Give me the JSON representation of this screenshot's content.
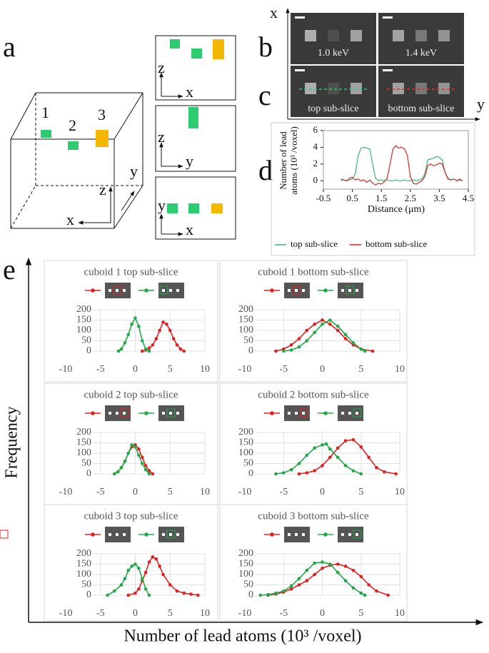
{
  "panel_labels": [
    "a",
    "b",
    "c",
    "d",
    "e"
  ],
  "panel_a": {
    "cuboid_labels": [
      "1",
      "2",
      "3"
    ],
    "cube_axes": [
      "z",
      "x",
      "y"
    ],
    "views": [
      [
        "z",
        "x"
      ],
      [
        "z",
        "y"
      ],
      [
        "y",
        "x"
      ]
    ]
  },
  "panel_bc": {
    "axes": [
      "x",
      "y"
    ],
    "labels": [
      "1.0 keV",
      "1.4 keV",
      "top sub-slice",
      "bottom sub-slice"
    ]
  },
  "panel_e": {
    "ylabel": "Frequency",
    "xlabel": "Number of lead atoms (10³ /voxel)"
  },
  "chart_data": [
    {
      "type": "line",
      "ylabel": [
        "Number of lead",
        "atoms (10³ /voxel)"
      ],
      "xlabel": "Distance (μm)",
      "xlim": [
        -0.5,
        4.5
      ],
      "ylim": [
        -1,
        6
      ],
      "xticks": [
        -0.5,
        0.5,
        1.5,
        2.5,
        3.5,
        4.5
      ],
      "yticks": [
        0,
        2,
        4,
        6
      ],
      "series": [
        {
          "name": "top sub-slice",
          "color": "#3cb371",
          "x": [
            0.1,
            0.2,
            0.3,
            0.4,
            0.5,
            0.6,
            0.7,
            0.8,
            0.9,
            1.0,
            1.1,
            1.2,
            1.3,
            1.4,
            1.5,
            1.6,
            1.7,
            1.8,
            1.9,
            2.0,
            2.1,
            2.2,
            2.3,
            2.4,
            2.5,
            2.6,
            2.7,
            2.8,
            2.9,
            3.0,
            3.1,
            3.2,
            3.3,
            3.4,
            3.5,
            3.6,
            3.7,
            3.8,
            3.9,
            4.0,
            4.1,
            4.2,
            4.3
          ],
          "values": [
            0,
            0.1,
            0,
            0.1,
            0.2,
            0.8,
            3,
            3.9,
            4,
            3.9,
            3.8,
            2,
            0.3,
            0,
            0.1,
            0,
            0.1,
            0,
            0,
            0.1,
            0,
            0,
            0.1,
            0,
            0,
            0.1,
            0,
            0.1,
            0.2,
            0.8,
            2.5,
            2.6,
            2.7,
            2.9,
            2.8,
            2.5,
            1,
            0.3,
            0.1,
            0.2,
            0,
            0.1,
            0
          ]
        },
        {
          "name": "bottom  sub-slice",
          "color": "#d62728",
          "x": [
            0.1,
            0.2,
            0.3,
            0.4,
            0.5,
            0.6,
            0.7,
            0.8,
            0.9,
            1.0,
            1.1,
            1.2,
            1.3,
            1.4,
            1.5,
            1.6,
            1.7,
            1.8,
            1.9,
            2.0,
            2.1,
            2.2,
            2.3,
            2.4,
            2.5,
            2.6,
            2.7,
            2.8,
            2.9,
            3.0,
            3.1,
            3.2,
            3.3,
            3.4,
            3.5,
            3.6,
            3.7,
            3.8,
            3.9,
            4.0,
            4.1,
            4.2,
            4.3
          ],
          "values": [
            0.2,
            0.1,
            0,
            0.3,
            0.4,
            0.1,
            0.2,
            0,
            0.1,
            -0.2,
            0.1,
            -0.3,
            -0.5,
            -0.3,
            -0.4,
            -0.1,
            0.3,
            2,
            3.8,
            4.2,
            3.9,
            4,
            3.8,
            3,
            0.5,
            -0.3,
            -0.4,
            -0.2,
            0,
            0.5,
            1.8,
            2,
            1.8,
            1.9,
            2.1,
            2,
            1,
            0.2,
            0.1,
            0.2,
            0,
            0.2,
            0
          ]
        }
      ]
    },
    {
      "type": "line",
      "title": "cuboid 1 top sub-slice",
      "grid": true,
      "xlim": [
        -10,
        10
      ],
      "ylim": [
        0,
        200
      ],
      "xticks": [
        -10,
        -5,
        0,
        5,
        10
      ],
      "yticks": [
        0,
        50,
        100,
        150,
        200
      ],
      "series": [
        {
          "color": "#e02020",
          "x": [
            1,
            1.5,
            2,
            2.5,
            3,
            3.5,
            4,
            4.5,
            5,
            5.5,
            6,
            6.5,
            7
          ],
          "values": [
            0,
            5,
            15,
            30,
            60,
            100,
            140,
            130,
            100,
            60,
            30,
            10,
            0
          ]
        },
        {
          "color": "#22a84a",
          "x": [
            -2.4,
            -2,
            -1.5,
            -1,
            -0.5,
            0,
            0.5,
            1,
            1.5,
            2
          ],
          "values": [
            0,
            10,
            40,
            80,
            130,
            160,
            120,
            50,
            10,
            0
          ]
        }
      ]
    },
    {
      "type": "line",
      "title": "cuboid 1 bottom sub-slice",
      "grid": true,
      "xlim": [
        -10,
        10
      ],
      "ylim": [
        0,
        200
      ],
      "xticks": [
        -10,
        -5,
        0,
        5,
        10
      ],
      "yticks": [
        0,
        50,
        100,
        150,
        200
      ],
      "series": [
        {
          "color": "#e02020",
          "x": [
            -6,
            -5,
            -4,
            -3,
            -2,
            -1,
            0,
            1,
            2,
            3,
            4,
            5,
            6.5
          ],
          "values": [
            0,
            10,
            30,
            60,
            100,
            130,
            150,
            130,
            100,
            60,
            30,
            10,
            0
          ]
        },
        {
          "color": "#22a84a",
          "x": [
            -5,
            -4,
            -3,
            -2,
            -1,
            0,
            1,
            2,
            3,
            4,
            5,
            5.5
          ],
          "values": [
            0,
            5,
            20,
            50,
            90,
            130,
            150,
            120,
            80,
            40,
            10,
            0
          ]
        }
      ]
    },
    {
      "type": "line",
      "title": "cuboid 2 top sub-slice",
      "grid": true,
      "xlim": [
        -10,
        10
      ],
      "ylim": [
        0,
        200
      ],
      "xticks": [
        -10,
        -5,
        0,
        5,
        10
      ],
      "yticks": [
        0,
        50,
        100,
        150,
        200
      ],
      "series": [
        {
          "color": "#e02020",
          "x": [
            -3,
            -2.5,
            -2,
            -1.5,
            -1,
            -0.5,
            0,
            0.5,
            1,
            1.5,
            2,
            2.5
          ],
          "values": [
            0,
            10,
            30,
            60,
            100,
            130,
            140,
            120,
            80,
            40,
            15,
            0
          ]
        },
        {
          "color": "#22a84a",
          "x": [
            -3,
            -2.5,
            -2,
            -1.5,
            -1,
            -0.5,
            0,
            0.5,
            1,
            1.5,
            2
          ],
          "values": [
            0,
            10,
            30,
            60,
            100,
            140,
            130,
            90,
            50,
            20,
            0
          ]
        }
      ]
    },
    {
      "type": "line",
      "title": "cuboid 2 bottom sub-slice",
      "grid": true,
      "xlim": [
        -10,
        10
      ],
      "ylim": [
        0,
        200
      ],
      "xticks": [
        -10,
        -5,
        0,
        5,
        10
      ],
      "yticks": [
        0,
        50,
        100,
        150,
        200
      ],
      "series": [
        {
          "color": "#e02020",
          "x": [
            -3,
            -2,
            -1,
            0,
            1,
            2,
            3,
            4,
            5,
            6,
            7,
            8,
            9.5
          ],
          "values": [
            0,
            5,
            15,
            40,
            80,
            125,
            160,
            165,
            130,
            80,
            30,
            10,
            0
          ]
        },
        {
          "color": "#22a84a",
          "x": [
            -6,
            -5,
            -4,
            -3,
            -2,
            -1,
            0,
            0.5,
            1,
            2,
            3,
            4,
            5
          ],
          "values": [
            0,
            5,
            20,
            50,
            90,
            125,
            140,
            145,
            120,
            80,
            40,
            15,
            0
          ]
        }
      ]
    },
    {
      "type": "line",
      "title": "cuboid 3 top sub-slice",
      "grid": true,
      "xlim": [
        -10,
        10
      ],
      "ylim": [
        0,
        200
      ],
      "xticks": [
        -10,
        -5,
        0,
        5,
        10
      ],
      "yticks": [
        0,
        50,
        100,
        150,
        200
      ],
      "series": [
        {
          "color": "#e02020",
          "x": [
            -1,
            0,
            0.5,
            1,
            1.5,
            2,
            2.5,
            3,
            3.5,
            4,
            5,
            6,
            7,
            8,
            9
          ],
          "values": [
            0,
            10,
            30,
            70,
            110,
            160,
            185,
            175,
            140,
            100,
            50,
            20,
            10,
            5,
            0
          ]
        },
        {
          "color": "#22a84a",
          "x": [
            -4,
            -3,
            -2,
            -1.5,
            -1,
            -0.5,
            0,
            0.5,
            1,
            1.5,
            2
          ],
          "values": [
            0,
            20,
            50,
            80,
            120,
            140,
            150,
            130,
            80,
            30,
            0
          ]
        }
      ]
    },
    {
      "type": "line",
      "title": "cuboid 3 bottom sub-slice",
      "grid": true,
      "xlim": [
        -10,
        10
      ],
      "ylim": [
        0,
        200
      ],
      "xticks": [
        -10,
        -5,
        0,
        5,
        10
      ],
      "yticks": [
        0,
        50,
        100,
        150,
        200
      ],
      "series": [
        {
          "color": "#e02020",
          "x": [
            -7,
            -6,
            -5,
            -4,
            -3,
            -2,
            -1,
            0,
            1,
            2,
            3,
            4,
            5,
            6,
            7,
            8.5
          ],
          "values": [
            0,
            5,
            15,
            30,
            50,
            70,
            100,
            130,
            145,
            150,
            140,
            120,
            90,
            50,
            20,
            0
          ]
        },
        {
          "color": "#22a84a",
          "x": [
            -8,
            -7,
            -6,
            -5,
            -4,
            -3,
            -2,
            -1,
            0,
            1,
            2,
            3,
            4,
            5,
            5.5
          ],
          "values": [
            0,
            3,
            10,
            20,
            45,
            80,
            120,
            155,
            160,
            150,
            110,
            70,
            35,
            10,
            0
          ]
        }
      ]
    }
  ]
}
